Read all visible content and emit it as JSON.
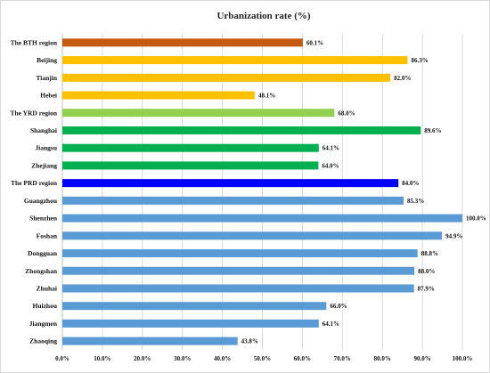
{
  "chart_data": {
    "type": "bar",
    "orientation": "horizontal",
    "title": "Urbanization rate (%)",
    "categories": [
      "The BTH region",
      "Beijing",
      "Tianjin",
      "Hebei",
      "The YRD region",
      "Shanghai",
      "Jiangsu",
      "Zhejiang",
      "The PRD region",
      "Guangzhou",
      "Shenzhen",
      "Foshan",
      "Dongguan",
      "Zhongshan",
      "Zhuhai",
      "Huizhou",
      "Jiangmen",
      "Zhaoqing"
    ],
    "values": [
      60.1,
      86.3,
      82.0,
      48.1,
      68.0,
      89.6,
      64.1,
      64.0,
      84.0,
      85.3,
      100.0,
      94.9,
      88.8,
      88.0,
      87.9,
      66.0,
      64.1,
      43.8
    ],
    "value_labels": [
      "60.1%",
      "86.3%",
      "82.0%",
      "48.1%",
      "68.0%",
      "89.6%",
      "64.1%",
      "64.0%",
      "84.0%",
      "85.3%",
      "100.0%",
      "94.9%",
      "88.8%",
      "88.0%",
      "87.9%",
      "66.0%",
      "64.1%",
      "43.8%"
    ],
    "bar_colors": [
      "#c55a11",
      "#ffc000",
      "#ffc000",
      "#ffc000",
      "#92d050",
      "#00b050",
      "#00b050",
      "#00b050",
      "#0000ff",
      "#5b9bd5",
      "#5b9bd5",
      "#5b9bd5",
      "#5b9bd5",
      "#5b9bd5",
      "#5b9bd5",
      "#5b9bd5",
      "#5b9bd5",
      "#5b9bd5"
    ],
    "x_ticks": [
      "0.0%",
      "10.0%",
      "20.0%",
      "30.0%",
      "40.0%",
      "50.0%",
      "60.0%",
      "70.0%",
      "80.0%",
      "90.0%",
      "100.0%"
    ],
    "xlim": [
      0,
      100
    ],
    "grid": true,
    "legend": "none"
  }
}
